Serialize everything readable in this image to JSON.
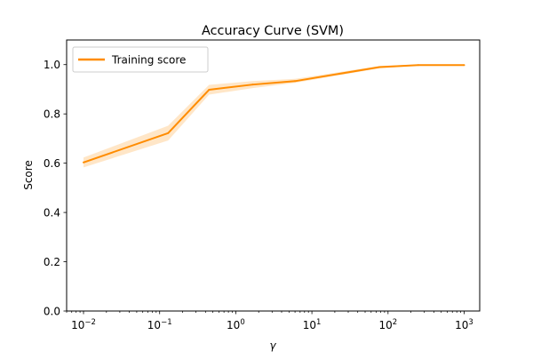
{
  "chart_data": {
    "type": "line",
    "title": "Accuracy Curve (SVM)",
    "xlabel": "γ",
    "ylabel": "Score",
    "xscale": "log",
    "xlim": [
      0.006,
      1600
    ],
    "ylim": [
      0.0,
      1.1
    ],
    "x_ticks": [
      {
        "value": 0.01,
        "base": "10",
        "exp": "−2"
      },
      {
        "value": 0.1,
        "base": "10",
        "exp": "−1"
      },
      {
        "value": 1,
        "base": "10",
        "exp": "0"
      },
      {
        "value": 10,
        "base": "10",
        "exp": "1"
      },
      {
        "value": 100,
        "base": "10",
        "exp": "2"
      },
      {
        "value": 1000,
        "base": "10",
        "exp": "3"
      }
    ],
    "y_ticks": [
      {
        "value": 0.0,
        "label": "0.0"
      },
      {
        "value": 0.2,
        "label": "0.2"
      },
      {
        "value": 0.4,
        "label": "0.4"
      },
      {
        "value": 0.6,
        "label": "0.6"
      },
      {
        "value": 0.8,
        "label": "0.8"
      },
      {
        "value": 1.0,
        "label": "1.0"
      }
    ],
    "grid": false,
    "legend_position": "top-left",
    "series": [
      {
        "name": "Training score",
        "color": "#ff8c00",
        "band_color": "#ff8c00",
        "x": [
          0.01,
          0.1292,
          0.4458,
          1.669,
          6.0,
          77.43,
          250,
          1000
        ],
        "y": [
          0.603,
          0.722,
          0.898,
          0.919,
          0.933,
          0.99,
          0.998,
          0.998
        ],
        "y_low": [
          0.583,
          0.692,
          0.878,
          0.905,
          0.926,
          0.985,
          0.996,
          0.996
        ],
        "y_high": [
          0.623,
          0.752,
          0.918,
          0.933,
          0.942,
          0.995,
          1.0,
          1.0
        ]
      }
    ]
  }
}
